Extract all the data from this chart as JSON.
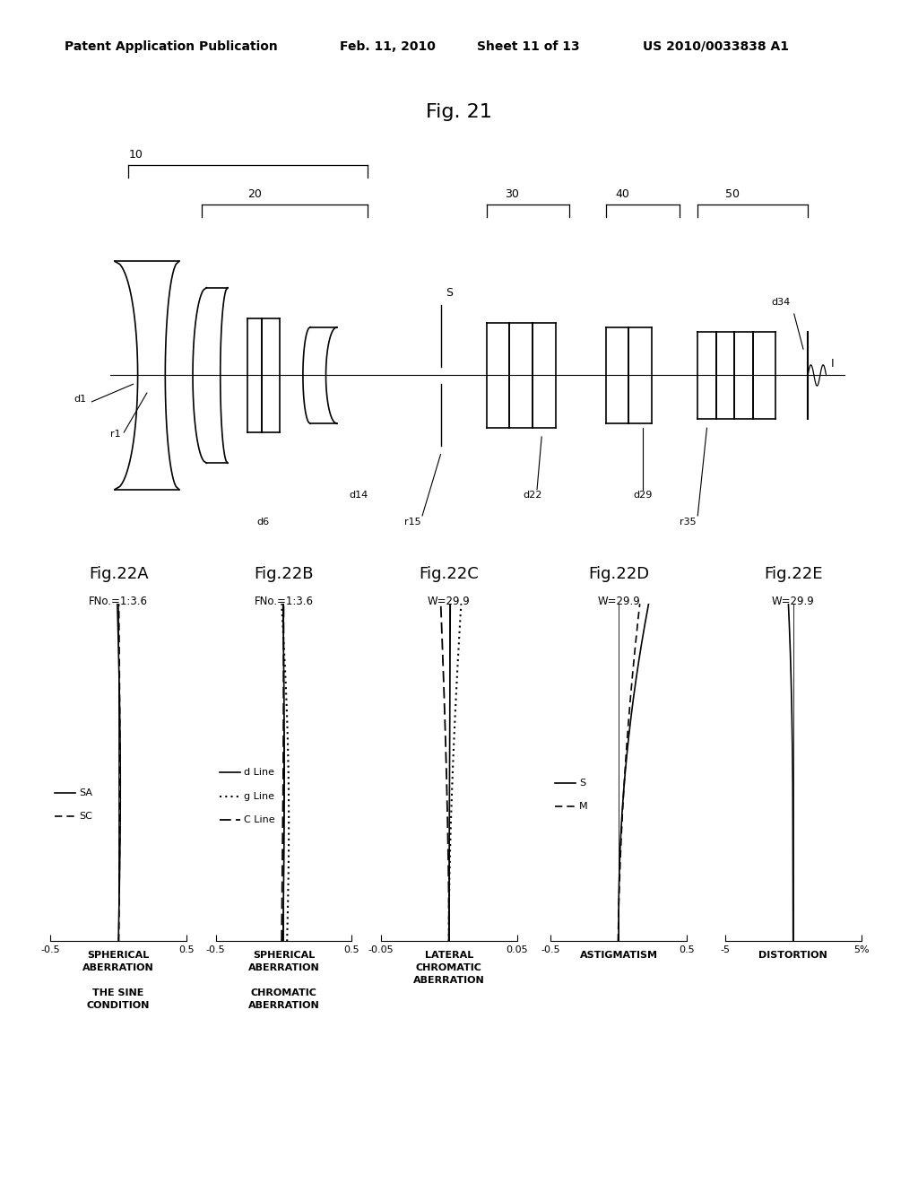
{
  "background_color": "#ffffff",
  "header_text": "Patent Application Publication",
  "header_date": "Feb. 11, 2010",
  "header_sheet": "Sheet 11 of 13",
  "header_patent": "US 2010/0033838 A1",
  "fig_title": "Fig. 21",
  "fig22_titles": [
    "Fig.22A",
    "Fig.22B",
    "Fig.22C",
    "Fig.22D",
    "Fig.22E"
  ],
  "fig22_subtitles": [
    "FNo.=1:3.6",
    "FNo.=1:3.6",
    "W=29.9",
    "W=29.9",
    "W=29.9"
  ],
  "xranges": [
    [
      -0.5,
      0.5
    ],
    [
      -0.5,
      0.5
    ],
    [
      -0.05,
      0.05
    ],
    [
      -0.5,
      0.5
    ],
    [
      -5,
      5
    ]
  ],
  "xtick_labels": [
    [
      "-0.5",
      "0.5"
    ],
    [
      "-0.5",
      "0.5"
    ],
    [
      "-0.05",
      "0.05"
    ],
    [
      "-0.5",
      "0.5"
    ],
    [
      "-5",
      "5%"
    ]
  ],
  "bottom_labels": [
    [
      "SPHERICAL",
      "ABERRATION",
      "",
      "THE SINE",
      "CONDITION"
    ],
    [
      "SPHERICAL",
      "ABERRATION",
      "",
      "CHROMATIC",
      "ABERRATION"
    ],
    [
      "LATERAL",
      "CHROMATIC",
      "ABERRATION",
      "",
      ""
    ],
    [
      "ASTIGMATISM",
      "",
      "",
      "",
      ""
    ],
    [
      "DISTORTION",
      "",
      "",
      "",
      ""
    ]
  ]
}
